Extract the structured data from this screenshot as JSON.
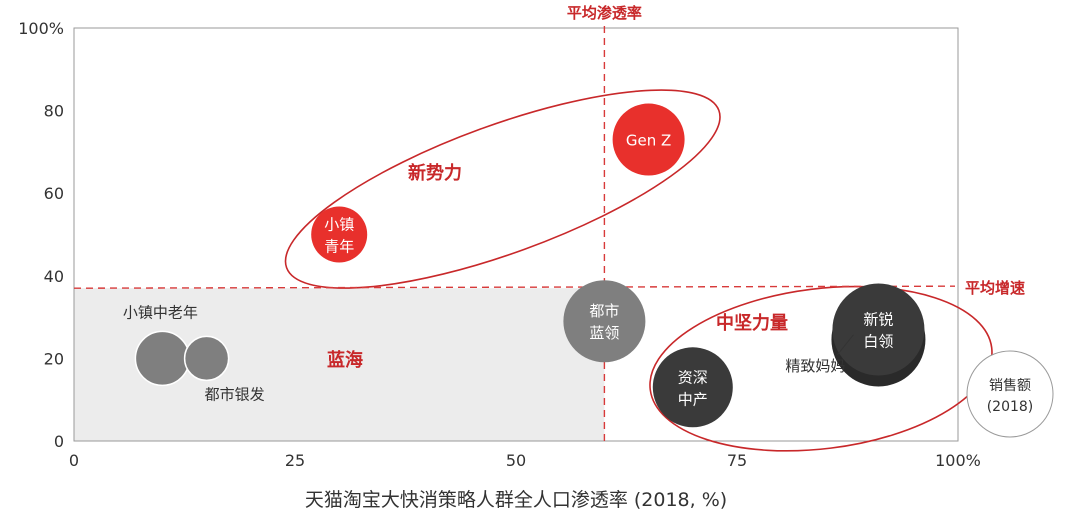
{
  "chart_data": {
    "type": "bubble",
    "xlabel": "天猫淘宝大快消策略人群全人口渗透率 (2018, %)",
    "ylabel": "",
    "xlim": [
      0,
      100
    ],
    "ylim": [
      0,
      100
    ],
    "x_ticks": [
      "0",
      "25",
      "50",
      "75",
      "100%"
    ],
    "y_ticks": [
      "0",
      "20",
      "40",
      "60",
      "80",
      "100%"
    ],
    "reference_lines": {
      "avg_penetration": {
        "label": "平均渗透率",
        "x": 60
      },
      "avg_growth": {
        "label": "平均增速",
        "y": 37
      }
    },
    "groups": {
      "new_force": "新势力",
      "core_force": "中坚力量",
      "blue_ocean": "蓝海"
    },
    "points": [
      {
        "name": "Gen Z",
        "lines": [
          "Gen Z"
        ],
        "x": 65,
        "y": 73,
        "color": "#e8302c",
        "label_inside": true
      },
      {
        "name": "小镇青年",
        "lines": [
          "小镇",
          "青年"
        ],
        "x": 30,
        "y": 50,
        "color": "#e8302c",
        "label_inside": true
      },
      {
        "name": "都市蓝领",
        "lines": [
          "都市",
          "蓝领"
        ],
        "x": 60,
        "y": 29,
        "color": "#7f7f7f",
        "label_inside": true
      },
      {
        "name": "新锐白领",
        "lines": [
          "新锐",
          "白领"
        ],
        "x": 91,
        "y": 27,
        "color": "#3a3a3a",
        "label_inside": true
      },
      {
        "name": "资深中产",
        "lines": [
          "资深",
          "中产"
        ],
        "x": 70,
        "y": 13,
        "color": "#3a3a3a",
        "label_inside": true
      },
      {
        "name": "精致妈妈",
        "lines": [
          "精致妈妈"
        ],
        "x": 91,
        "y": 25,
        "color": "#3a3a3a",
        "label_inside": false
      },
      {
        "name": "小镇中老年",
        "lines": [
          "小镇中老年"
        ],
        "x": 10,
        "y": 20,
        "color": "#7f7f7f",
        "label_inside": false
      },
      {
        "name": "都市银发",
        "lines": [
          "都市银发"
        ],
        "x": 15,
        "y": 20,
        "color": "#7f7f7f",
        "label_inside": false
      }
    ],
    "legend": {
      "lines": [
        "销售额",
        "(2018)"
      ],
      "placement": "right"
    },
    "grid": false
  }
}
